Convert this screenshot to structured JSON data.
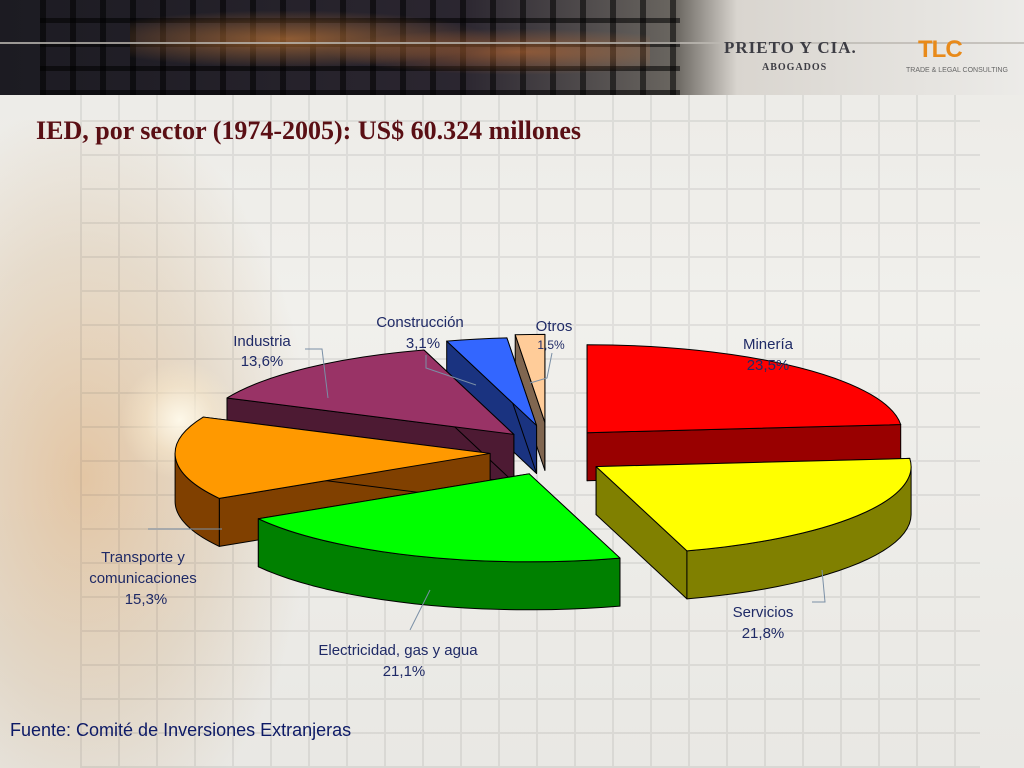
{
  "header": {
    "firm_name": "PRIETO Y CIA.",
    "firm_subtitle": "ABOGADOS",
    "logo_text": "TLC",
    "logo_subtitle": "TRADE & LEGAL CONSULTING"
  },
  "title": "IED, por sector (1974-2005): US$ 60.324 millones",
  "source": "Fuente: Comité de Inversiones Extranjeras",
  "chart_data": {
    "type": "pie",
    "style": "3d-exploded",
    "title": "IED, por sector (1974-2005): US$ 60.324 millones",
    "slices": [
      {
        "name": "Minería",
        "value": 23.5,
        "label": "23,5%",
        "color": "#ff0000",
        "side": "#990000"
      },
      {
        "name": "Servicios",
        "value": 21.8,
        "label": "21,8%",
        "color": "#ffff00",
        "side": "#808000"
      },
      {
        "name": "Electricidad, gas y agua",
        "value": 21.1,
        "label": "21,1%",
        "color": "#00ff00",
        "side": "#008000"
      },
      {
        "name": "Transporte y comunicaciones",
        "value": 15.3,
        "label": "15,3%",
        "color": "#ff9900",
        "side": "#804000"
      },
      {
        "name": "Industria",
        "value": 13.6,
        "label": "13,6%",
        "color": "#993366",
        "side": "#4d1a33"
      },
      {
        "name": "Construcción",
        "value": 3.1,
        "label": "3,1%",
        "color": "#3366ff",
        "side": "#1a3380"
      },
      {
        "name": "Otros",
        "value": 1.5,
        "label": "1,5%",
        "color": "#ffcc99",
        "side": "#806650"
      }
    ],
    "labels": {
      "mineria": [
        "Minería",
        "23,5%"
      ],
      "servicios": [
        "Servicios",
        "21,8%"
      ],
      "electricidad": [
        "Electricidad, gas y agua",
        "21,1%"
      ],
      "transporte": [
        "Transporte y",
        "comunicaciones",
        "15,3%"
      ],
      "industria": [
        "Industria",
        "13,6%"
      ],
      "construccion": [
        "Construcción",
        "3,1%"
      ],
      "otros": [
        "Otros",
        "1,5%"
      ]
    },
    "legend": "none (labels next to slices)"
  }
}
